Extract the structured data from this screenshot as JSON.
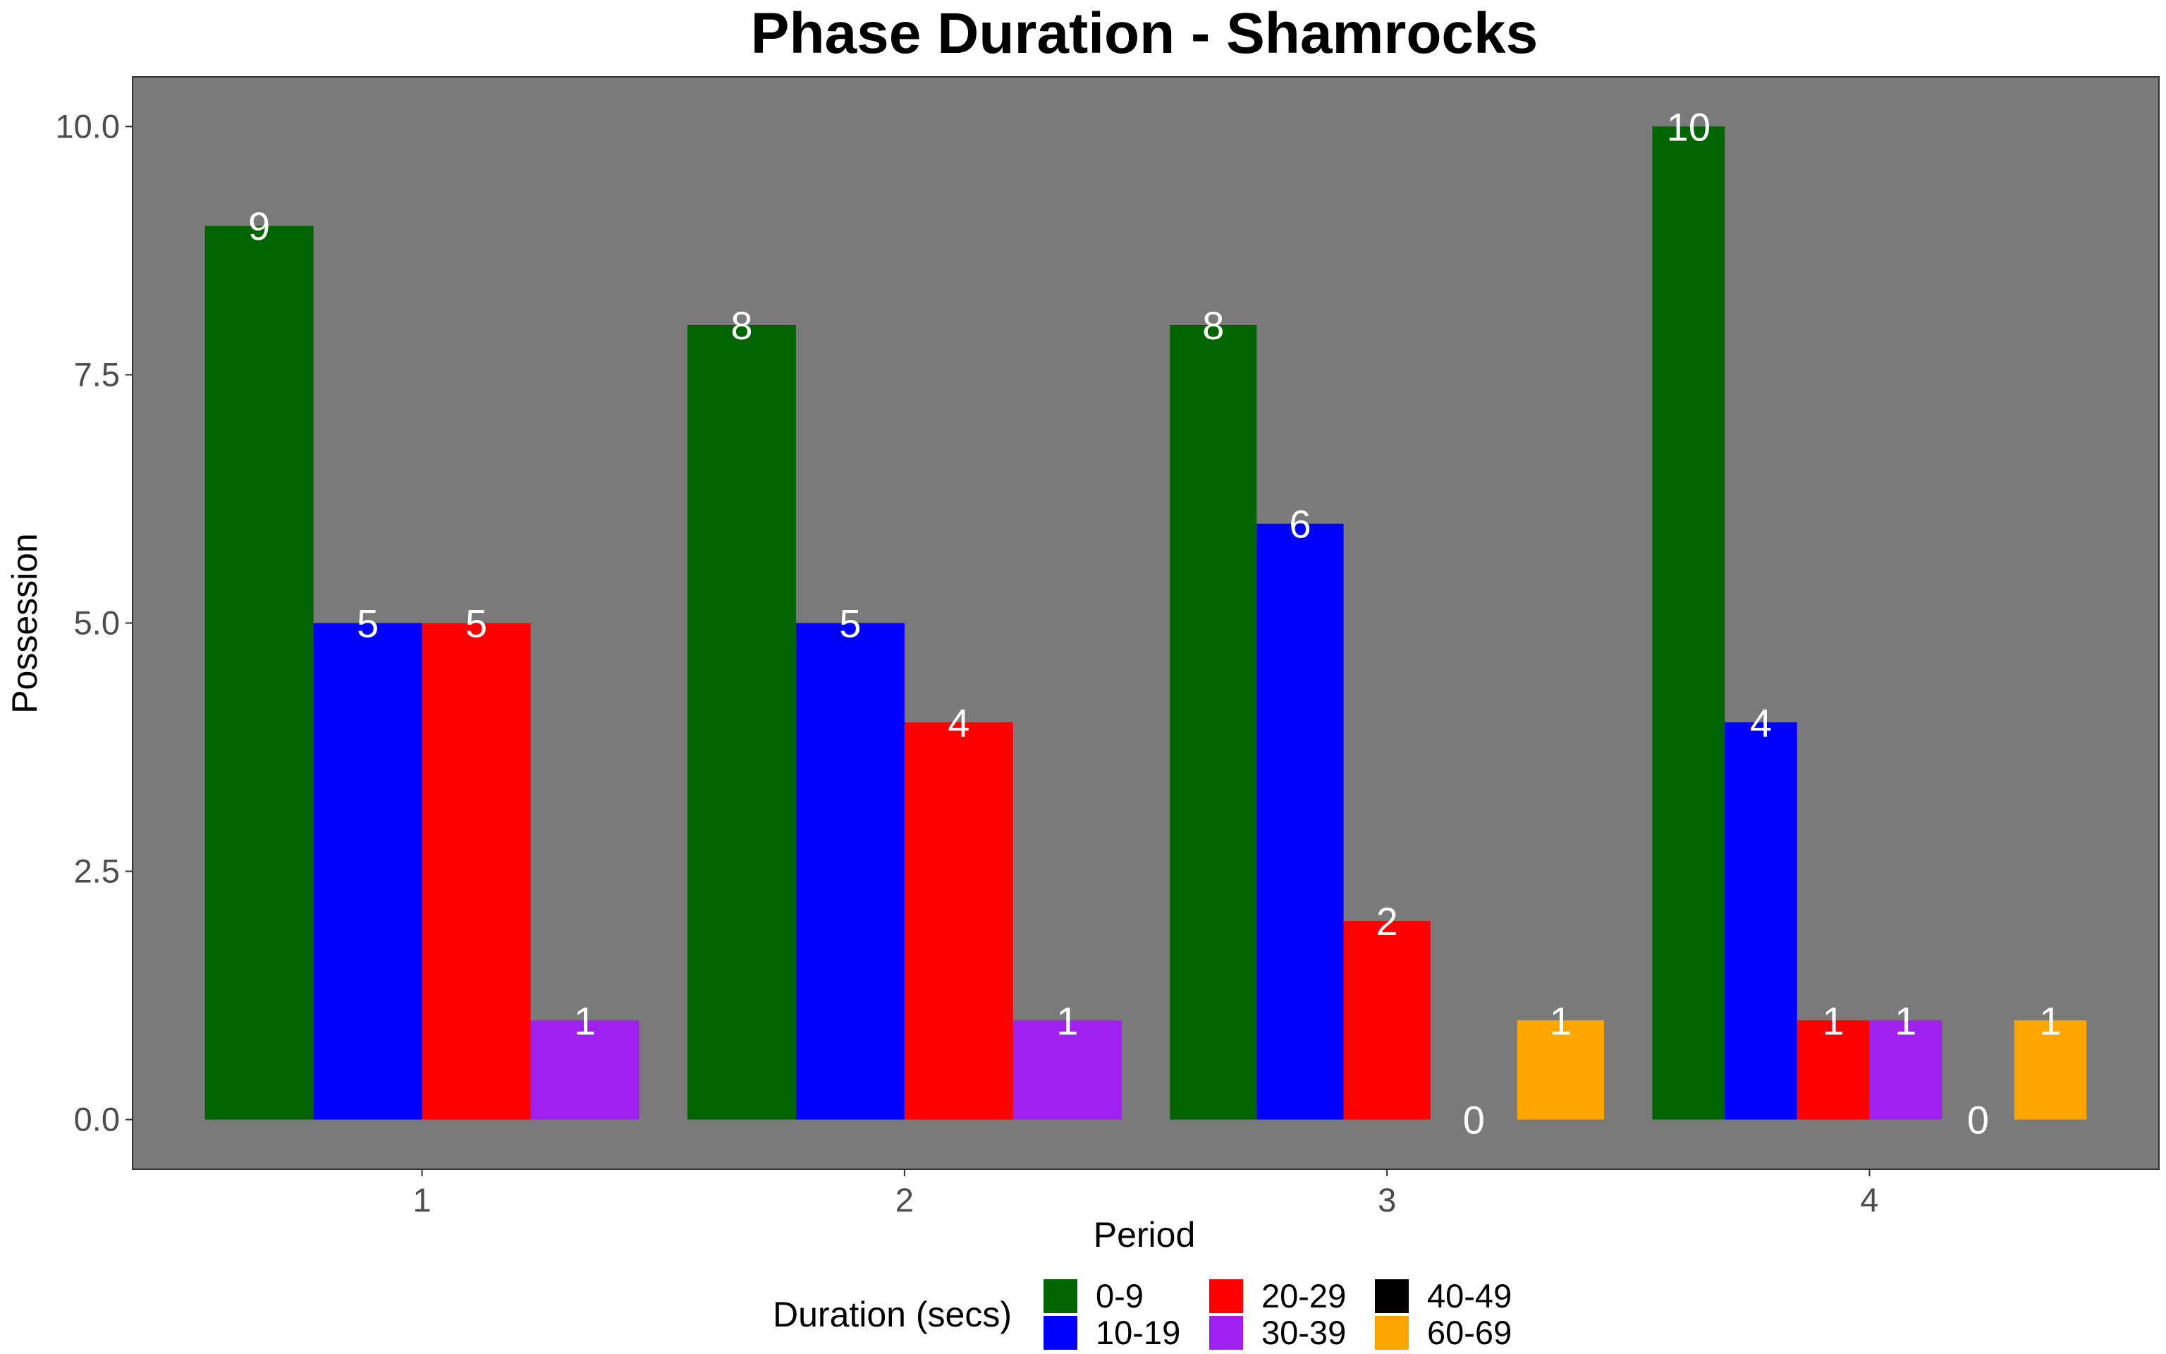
{
  "chart_data": {
    "type": "bar",
    "title": "Phase Duration - Shamrocks",
    "xlabel": "Period",
    "ylabel": "Possession",
    "ylim": [
      -0.5,
      10.5
    ],
    "yticks": [
      "0.0",
      "2.5",
      "5.0",
      "7.5",
      "10.0"
    ],
    "categories": [
      "1",
      "2",
      "3",
      "4"
    ],
    "grid": false,
    "legend": {
      "title": "Duration (secs)",
      "position": "bottom"
    },
    "panel_background": "#7a7a7a",
    "series": [
      {
        "name": "0-9",
        "color": "#006400"
      },
      {
        "name": "10-19",
        "color": "#0000ff"
      },
      {
        "name": "20-29",
        "color": "#ff0000"
      },
      {
        "name": "30-39",
        "color": "#a020f0"
      },
      {
        "name": "40-49",
        "color": "#000000"
      },
      {
        "name": "60-69",
        "color": "#ffa500"
      }
    ],
    "groups": [
      {
        "category": "1",
        "bars": [
          {
            "series": "0-9",
            "value": 9
          },
          {
            "series": "10-19",
            "value": 5
          },
          {
            "series": "20-29",
            "value": 5
          },
          {
            "series": "30-39",
            "value": 1
          }
        ]
      },
      {
        "category": "2",
        "bars": [
          {
            "series": "0-9",
            "value": 8
          },
          {
            "series": "10-19",
            "value": 5
          },
          {
            "series": "20-29",
            "value": 4
          },
          {
            "series": "30-39",
            "value": 1
          }
        ]
      },
      {
        "category": "3",
        "bars": [
          {
            "series": "0-9",
            "value": 8
          },
          {
            "series": "10-19",
            "value": 6
          },
          {
            "series": "20-29",
            "value": 2
          },
          {
            "series": "40-49",
            "value": 0
          },
          {
            "series": "60-69",
            "value": 1
          }
        ]
      },
      {
        "category": "4",
        "bars": [
          {
            "series": "0-9",
            "value": 10
          },
          {
            "series": "10-19",
            "value": 4
          },
          {
            "series": "20-29",
            "value": 1
          },
          {
            "series": "30-39",
            "value": 1
          },
          {
            "series": "40-49",
            "value": 0
          },
          {
            "series": "60-69",
            "value": 1
          }
        ]
      }
    ]
  }
}
